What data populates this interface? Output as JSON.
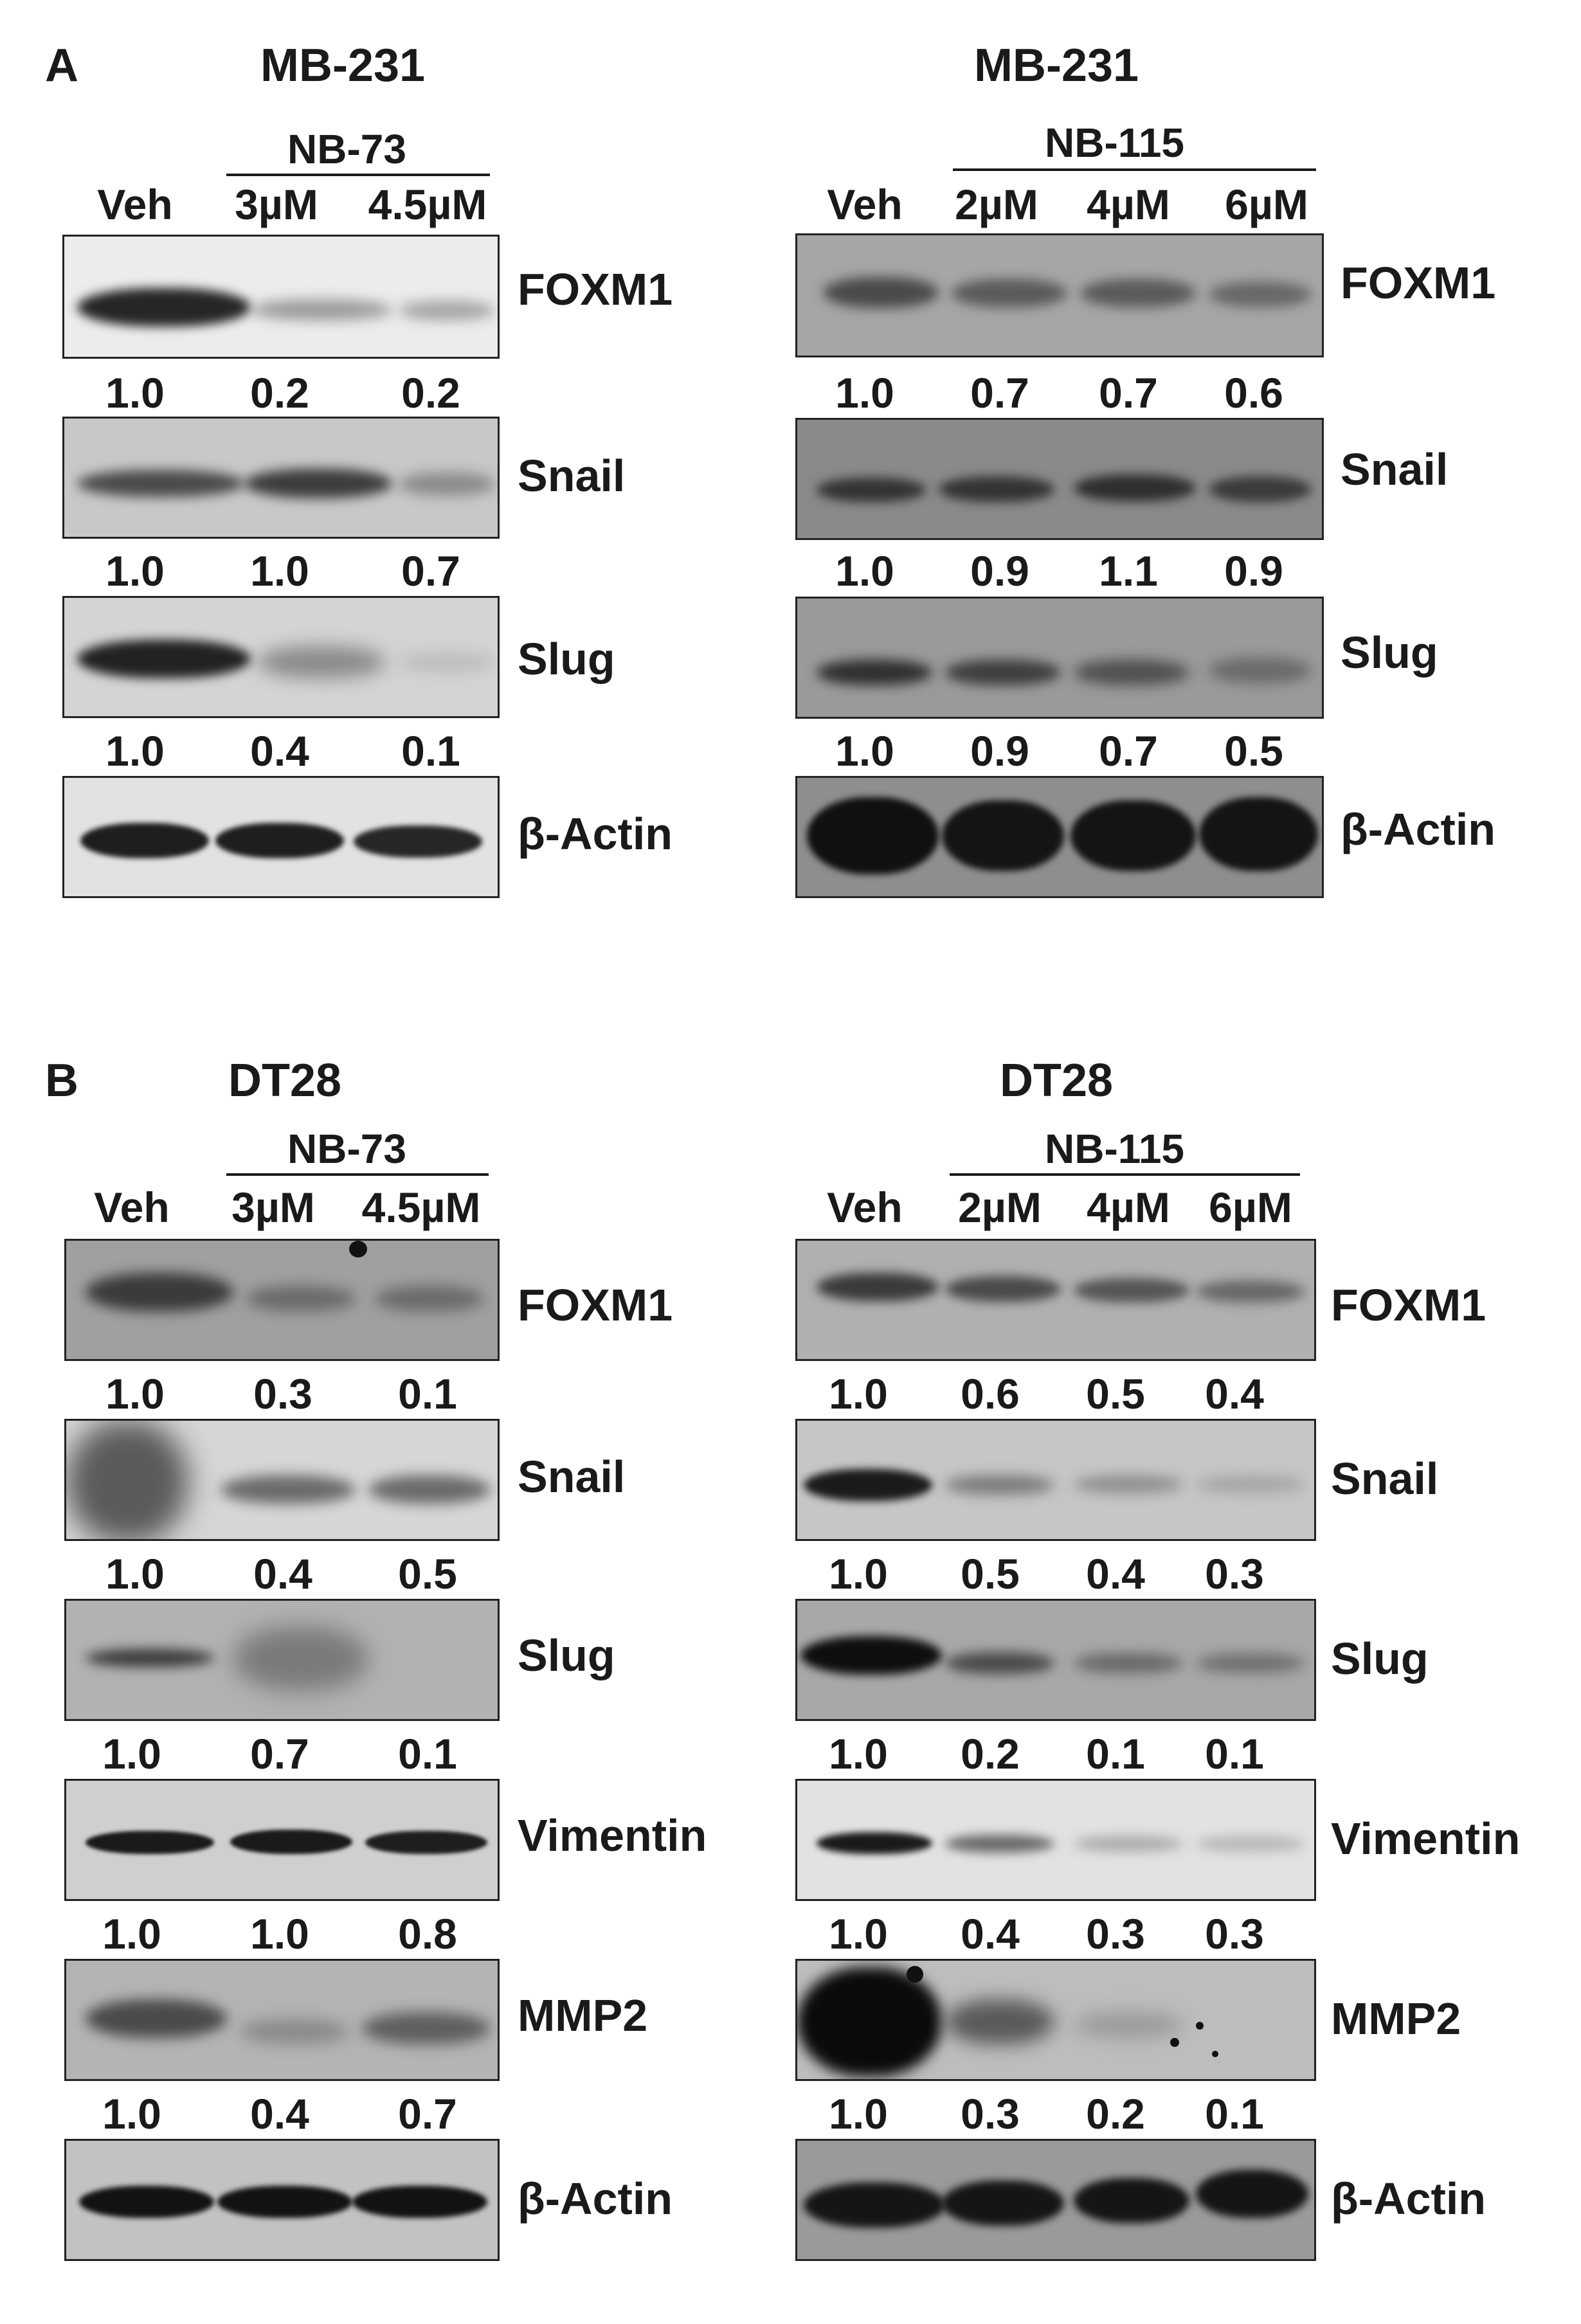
{
  "panels": [
    {
      "letter": "A",
      "blocks": [
        {
          "cell_line": "MB-231",
          "drug": "NB-73",
          "lanes": [
            "Veh",
            "3µM",
            "4.5µM"
          ],
          "rows": [
            {
              "protein": "FOXM1",
              "values": [
                "1.0",
                "0.2",
                "0.2"
              ]
            },
            {
              "protein": "Snail",
              "values": [
                "1.0",
                "1.0",
                "0.7"
              ]
            },
            {
              "protein": "Slug",
              "values": [
                "1.0",
                "0.4",
                "0.1"
              ]
            },
            {
              "protein": "β-Actin"
            }
          ]
        },
        {
          "cell_line": "MB-231",
          "drug": "NB-115",
          "lanes": [
            "Veh",
            "2µM",
            "4µM",
            "6µM"
          ],
          "rows": [
            {
              "protein": "FOXM1",
              "values": [
                "1.0",
                "0.7",
                "0.7",
                "0.6"
              ]
            },
            {
              "protein": "Snail",
              "values": [
                "1.0",
                "0.9",
                "1.1",
                "0.9"
              ]
            },
            {
              "protein": "Slug",
              "values": [
                "1.0",
                "0.9",
                "0.7",
                "0.5"
              ]
            },
            {
              "protein": "β-Actin"
            }
          ]
        }
      ]
    },
    {
      "letter": "B",
      "blocks": [
        {
          "cell_line": "DT28",
          "drug": "NB-73",
          "lanes": [
            "Veh",
            "3µM",
            "4.5µM"
          ],
          "rows": [
            {
              "protein": "FOXM1",
              "values": [
                "1.0",
                "0.3",
                "0.1"
              ]
            },
            {
              "protein": "Snail",
              "values": [
                "1.0",
                "0.4",
                "0.5"
              ]
            },
            {
              "protein": "Slug",
              "values": [
                "1.0",
                "0.7",
                "0.1"
              ]
            },
            {
              "protein": "Vimentin",
              "values": [
                "1.0",
                "1.0",
                "0.8"
              ]
            },
            {
              "protein": "MMP2",
              "values": [
                "1.0",
                "0.4",
                "0.7"
              ]
            },
            {
              "protein": "β-Actin"
            }
          ]
        },
        {
          "cell_line": "DT28",
          "drug": "NB-115",
          "lanes": [
            "Veh",
            "2µM",
            "4µM",
            "6µM"
          ],
          "rows": [
            {
              "protein": "FOXM1",
              "values": [
                "1.0",
                "0.6",
                "0.5",
                "0.4"
              ]
            },
            {
              "protein": "Snail",
              "values": [
                "1.0",
                "0.5",
                "0.4",
                "0.3"
              ]
            },
            {
              "protein": "Slug",
              "values": [
                "1.0",
                "0.2",
                "0.1",
                "0.1"
              ]
            },
            {
              "protein": "Vimentin",
              "values": [
                "1.0",
                "0.4",
                "0.3",
                "0.3"
              ]
            },
            {
              "protein": "MMP2",
              "values": [
                "1.0",
                "0.3",
                "0.2",
                "0.1"
              ]
            },
            {
              "protein": "β-Actin"
            }
          ]
        }
      ]
    }
  ]
}
